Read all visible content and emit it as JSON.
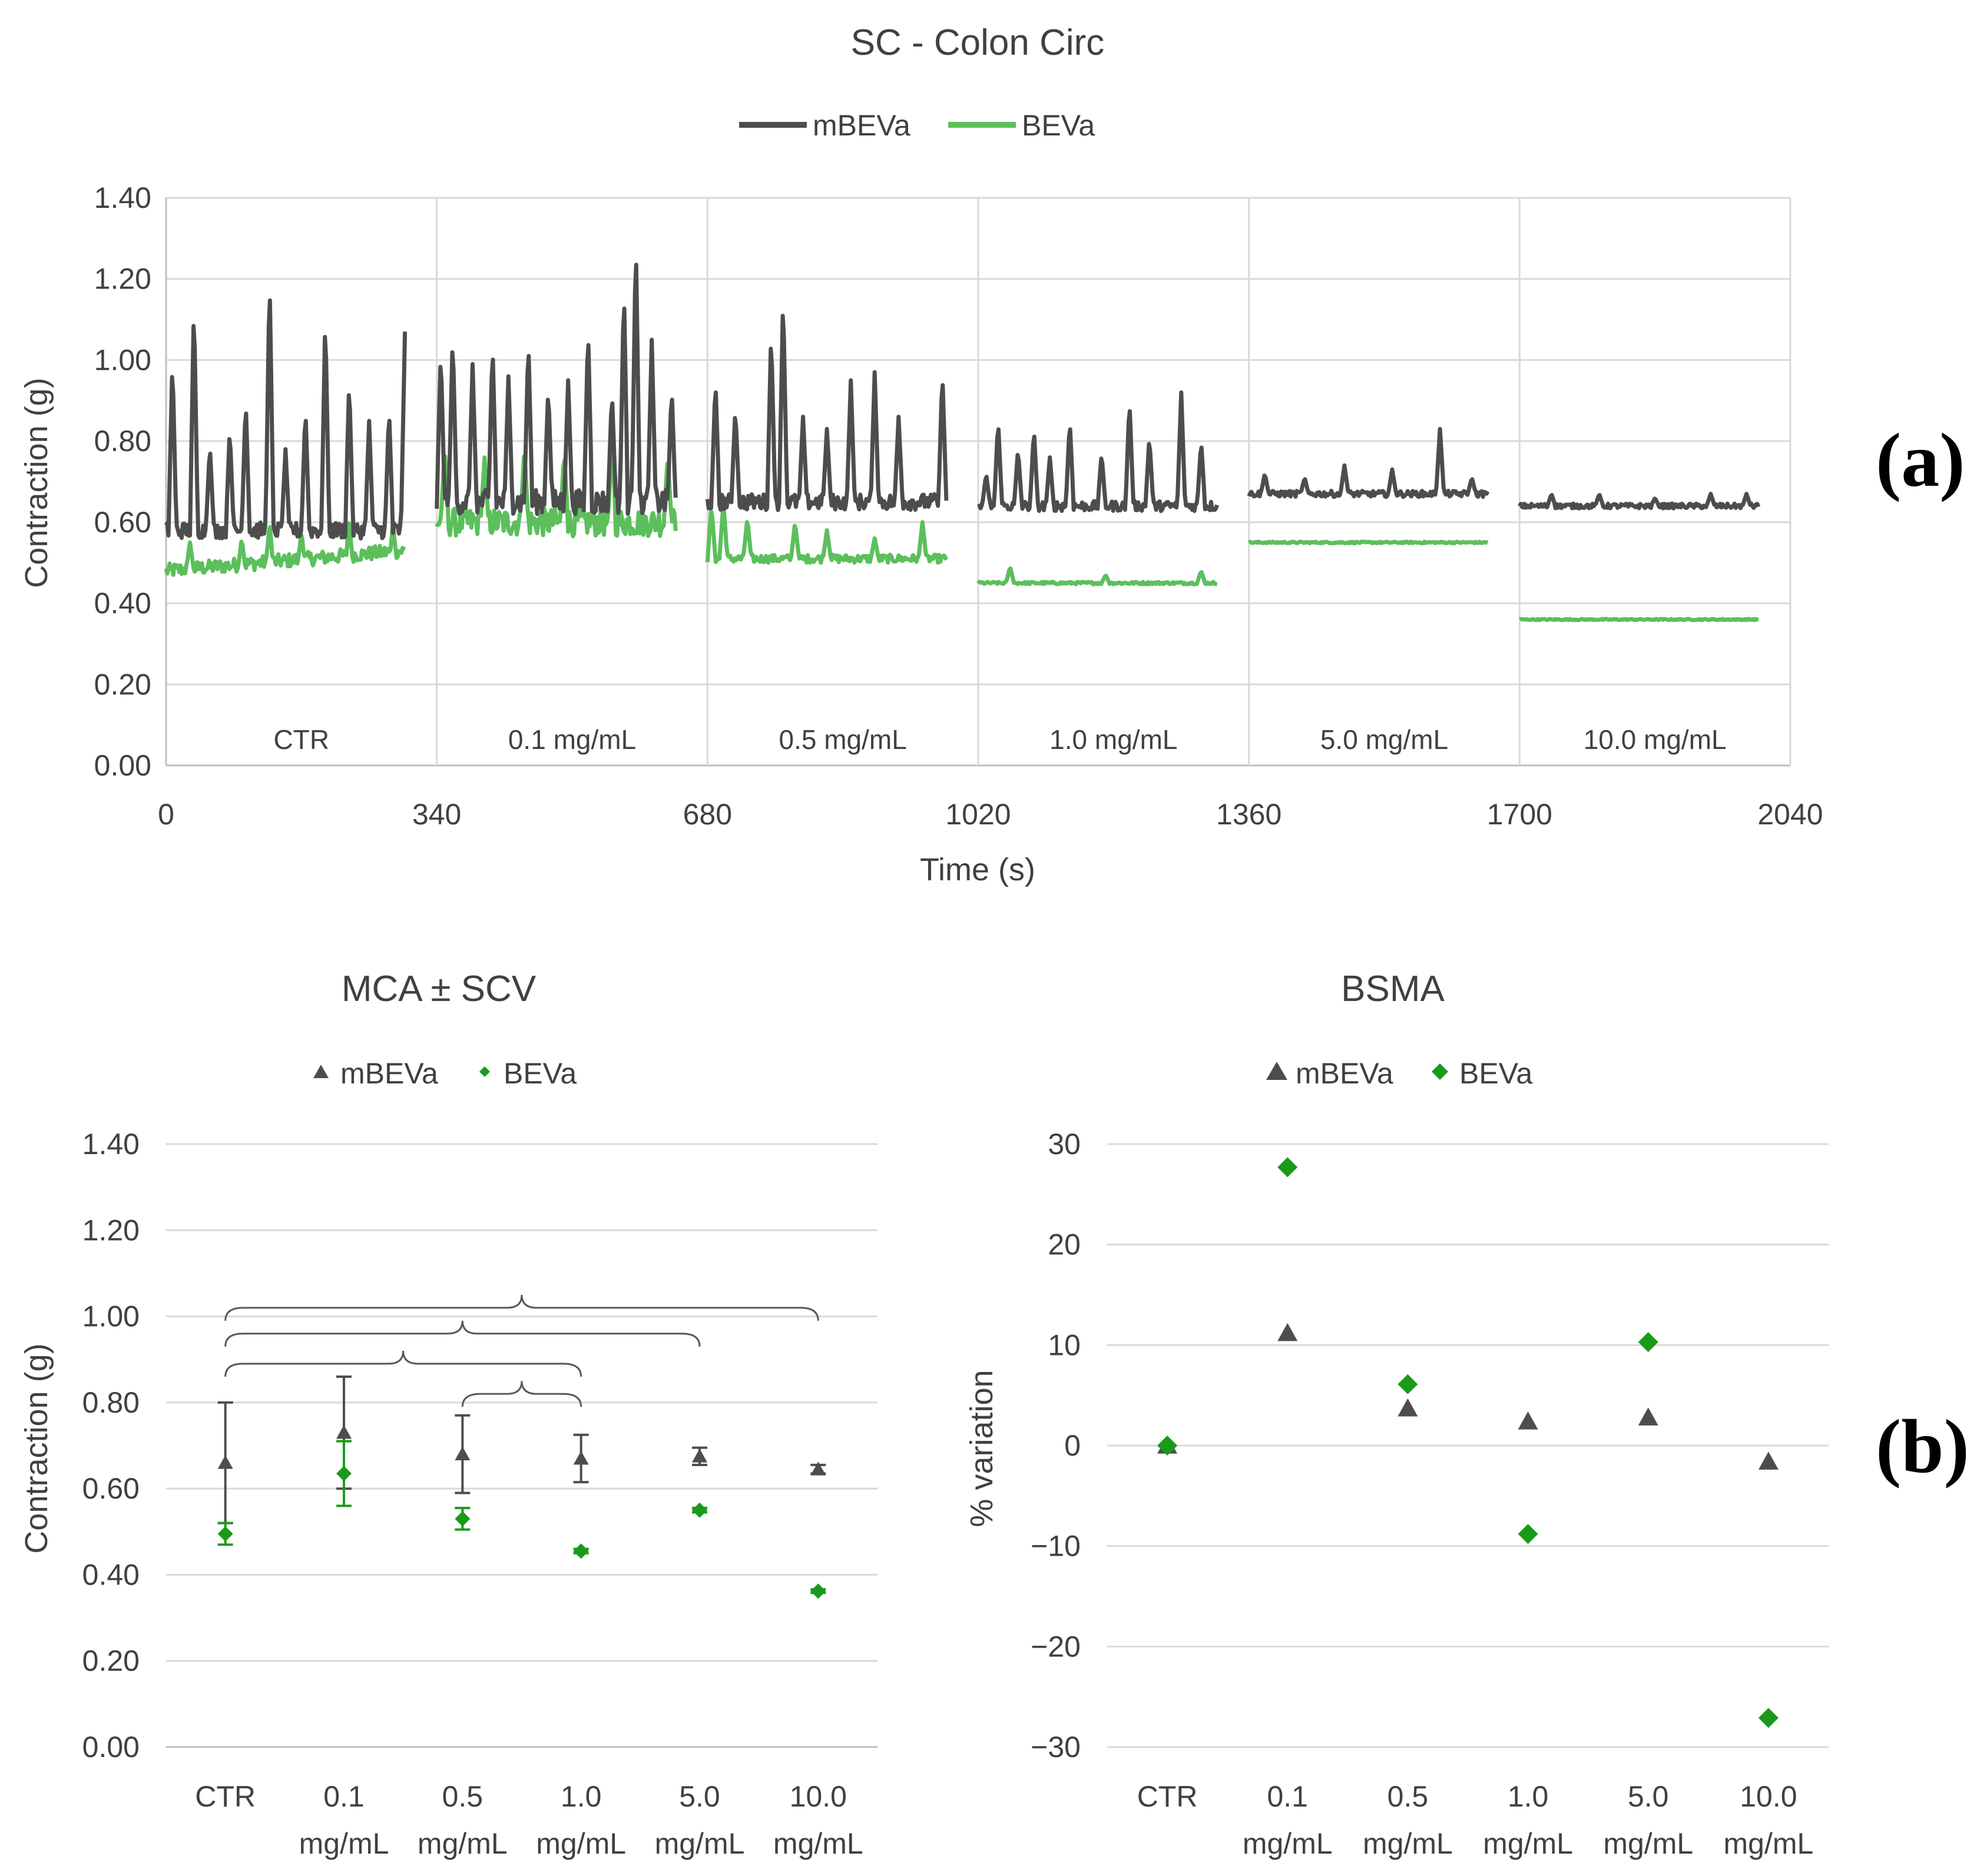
{
  "colors": {
    "mBEVa": "#4d4d4d",
    "BEVa_line": "#5cbf5c",
    "BEVa_marker": "#1a9a1a",
    "text": "#404040"
  },
  "panel_labels": {
    "a": "(a)",
    "b": "(b)"
  },
  "chart_data": [
    {
      "id": "trace",
      "type": "line",
      "title": "SC - Colon Circ",
      "xlabel": "Time (s)",
      "ylabel": "Contraction (g)",
      "xlim": [
        0,
        2040
      ],
      "ylim": [
        0,
        1.4
      ],
      "x_ticks": [
        "0",
        "340",
        "680",
        "1020",
        "1360",
        "1700",
        "2040"
      ],
      "x_tick_values": [
        0,
        340,
        680,
        1020,
        1360,
        1700,
        2040
      ],
      "y_ticks": [
        "0.00",
        "0.20",
        "0.40",
        "0.60",
        "0.80",
        "1.00",
        "1.20",
        "1.40"
      ],
      "y_tick_values": [
        0,
        0.2,
        0.4,
        0.6,
        0.8,
        1.0,
        1.2,
        1.4
      ],
      "legend": [
        "mBEVa",
        "BEVa"
      ],
      "legend_position": "top",
      "segments": [
        {
          "label": "CTR",
          "start": 0,
          "end": 300
        },
        {
          "label": "0.1 mg/mL",
          "start": 340,
          "end": 640
        },
        {
          "label": "0.5 mg/mL",
          "start": 680,
          "end": 980
        },
        {
          "label": "1.0 mg/mL",
          "start": 1020,
          "end": 1320
        },
        {
          "label": "5.0 mg/mL",
          "start": 1360,
          "end": 1660
        },
        {
          "label": "10.0 mg/mL",
          "start": 1700,
          "end": 2000
        }
      ],
      "series": [
        {
          "name": "mBEVa",
          "baseline": [
            0.58,
            0.65,
            0.65,
            0.64,
            0.67,
            0.64
          ],
          "noise": [
            0.04,
            0.06,
            0.04,
            0.025,
            0.015,
            0.012
          ],
          "peaks": [
            [
              [
                8,
                1.0
              ],
              [
                35,
                1.14
              ],
              [
                55,
                0.79
              ],
              [
                80,
                0.83
              ],
              [
                100,
                0.9
              ],
              [
                130,
                1.21
              ],
              [
                150,
                0.78
              ],
              [
                175,
                0.88
              ],
              [
                200,
                1.11
              ],
              [
                230,
                0.95
              ],
              [
                255,
                0.85
              ],
              [
                280,
                0.88
              ],
              [
                300,
                1.07
              ]
            ],
            [
              [
                345,
                1.02
              ],
              [
                360,
                1.06
              ],
              [
                385,
                0.99
              ],
              [
                410,
                1.04
              ],
              [
                430,
                0.96
              ],
              [
                455,
                1.05
              ],
              [
                480,
                0.93
              ],
              [
                505,
                0.95
              ],
              [
                530,
                1.08
              ],
              [
                560,
                0.92
              ],
              [
                575,
                1.18
              ],
              [
                590,
                1.3
              ],
              [
                610,
                1.05
              ],
              [
                635,
                0.93
              ]
            ],
            [
              [
                690,
                0.95
              ],
              [
                715,
                0.88
              ],
              [
                760,
                1.07
              ],
              [
                775,
                1.16
              ],
              [
                800,
                0.86
              ],
              [
                830,
                0.83
              ],
              [
                860,
                0.95
              ],
              [
                890,
                0.97
              ],
              [
                920,
                0.86
              ],
              [
                975,
                0.97
              ]
            ],
            [
              [
                1030,
                0.72
              ],
              [
                1045,
                0.85
              ],
              [
                1070,
                0.78
              ],
              [
                1090,
                0.83
              ],
              [
                1110,
                0.76
              ],
              [
                1135,
                0.85
              ],
              [
                1175,
                0.77
              ],
              [
                1210,
                0.9
              ],
              [
                1235,
                0.81
              ],
              [
                1275,
                0.92
              ],
              [
                1300,
                0.8
              ]
            ],
            [
              [
                1380,
                0.72
              ],
              [
                1430,
                0.71
              ],
              [
                1480,
                0.74
              ],
              [
                1540,
                0.73
              ],
              [
                1600,
                0.83
              ],
              [
                1640,
                0.71
              ]
            ],
            [
              [
                1740,
                0.67
              ],
              [
                1800,
                0.67
              ],
              [
                1870,
                0.66
              ],
              [
                1940,
                0.67
              ],
              [
                1985,
                0.67
              ]
            ]
          ]
        },
        {
          "name": "BEVa",
          "baseline": [
            0.48,
            0.6,
            0.51,
            0.45,
            0.55,
            0.36
          ],
          "noise": [
            0.035,
            0.07,
            0.02,
            0.006,
            0.004,
            0.003
          ],
          "peaks": [
            [
              [
                30,
                0.55
              ],
              [
                95,
                0.56
              ],
              [
                130,
                0.6
              ],
              [
                170,
                0.58
              ],
              [
                230,
                0.61
              ],
              [
                285,
                0.6
              ]
            ],
            [
              [
                350,
                0.78
              ],
              [
                400,
                0.76
              ],
              [
                450,
                0.78
              ],
              [
                500,
                0.77
              ],
              [
                560,
                0.81
              ],
              [
                630,
                0.76
              ]
            ],
            [
              [
                685,
                0.64
              ],
              [
                700,
                0.65
              ],
              [
                730,
                0.61
              ],
              [
                790,
                0.6
              ],
              [
                830,
                0.58
              ],
              [
                890,
                0.56
              ],
              [
                950,
                0.6
              ]
            ],
            [
              [
                1060,
                0.49
              ],
              [
                1180,
                0.47
              ],
              [
                1300,
                0.48
              ]
            ],
            [],
            []
          ]
        }
      ]
    },
    {
      "id": "mca",
      "type": "scatter",
      "title": "MCA ± SCV",
      "xlabel": "",
      "ylabel": "Contraction (g)",
      "ylim": [
        0,
        1.4
      ],
      "y_ticks": [
        "0.00",
        "0.20",
        "0.40",
        "0.60",
        "0.80",
        "1.00",
        "1.20",
        "1.40"
      ],
      "y_tick_values": [
        0,
        0.2,
        0.4,
        0.6,
        0.8,
        1.0,
        1.2,
        1.4
      ],
      "categories": [
        [
          "CTR",
          ""
        ],
        [
          "0.1",
          "mg/mL"
        ],
        [
          "0.5",
          "mg/mL"
        ],
        [
          "1.0",
          "mg/mL"
        ],
        [
          "5.0",
          "mg/mL"
        ],
        [
          "10.0",
          "mg/mL"
        ]
      ],
      "legend": [
        "mBEVa",
        "BEVa"
      ],
      "legend_position": "top",
      "series": [
        {
          "name": "mBEVa",
          "values": [
            0.66,
            0.73,
            0.68,
            0.67,
            0.675,
            0.645
          ],
          "errors": [
            0.14,
            0.13,
            0.09,
            0.055,
            0.02,
            0.01
          ]
        },
        {
          "name": "BEVa",
          "values": [
            0.495,
            0.635,
            0.53,
            0.455,
            0.55,
            0.362
          ],
          "errors": [
            0.025,
            0.075,
            0.025,
            0.005,
            0.005,
            0.004
          ]
        }
      ],
      "brackets": [
        {
          "from": 2,
          "to": 3,
          "y": 0.82
        },
        {
          "from": 0,
          "to": 3,
          "y": 0.89
        },
        {
          "from": 0,
          "to": 4,
          "y": 0.96
        },
        {
          "from": 0,
          "to": 5,
          "y": 1.02
        }
      ]
    },
    {
      "id": "bsma",
      "type": "scatter",
      "title": "BSMA",
      "xlabel": "",
      "ylabel": "% variation",
      "ylim": [
        -30,
        30
      ],
      "y_ticks": [
        "−30",
        "−20",
        "−10",
        "0",
        "10",
        "20",
        "30"
      ],
      "y_tick_values": [
        -30,
        -20,
        -10,
        0,
        10,
        20,
        30
      ],
      "categories": [
        [
          "CTR",
          ""
        ],
        [
          "0.1",
          "mg/mL"
        ],
        [
          "0.5",
          "mg/mL"
        ],
        [
          "1.0",
          "mg/mL"
        ],
        [
          "5.0",
          "mg/mL"
        ],
        [
          "10.0",
          "mg/mL"
        ]
      ],
      "legend": [
        "mBEVa",
        "BEVa"
      ],
      "legend_position": "top",
      "series": [
        {
          "name": "mBEVa",
          "values": [
            0,
            11.2,
            3.7,
            2.4,
            2.8,
            -1.6
          ]
        },
        {
          "name": "BEVa",
          "values": [
            0,
            27.7,
            6.1,
            -8.8,
            10.3,
            -27.1
          ]
        }
      ]
    }
  ]
}
